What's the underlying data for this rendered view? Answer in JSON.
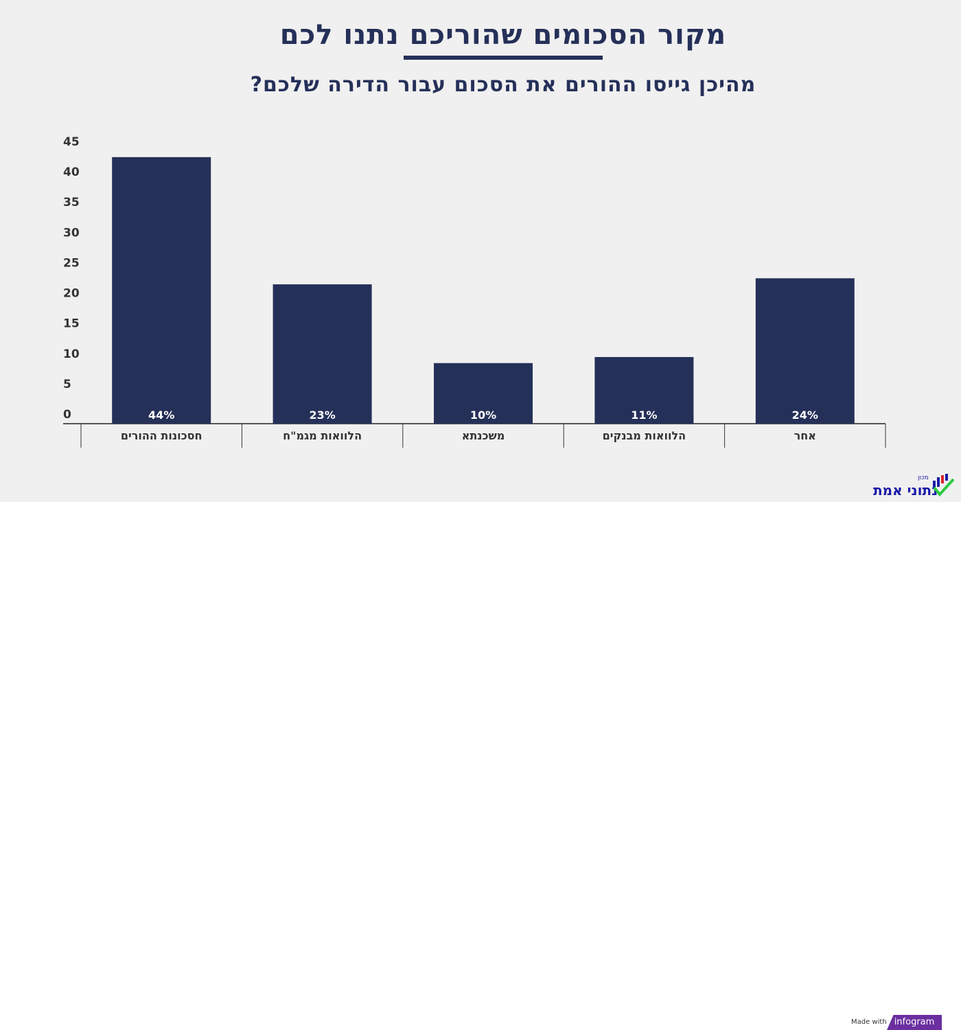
{
  "header": {
    "title": "מקור הסכומים שהוריכם נתנו לכם",
    "subtitle": "מהיכן גייסו ההורים את הסכום עבור הדירה שלכם?"
  },
  "chart_data": {
    "type": "bar",
    "categories": [
      "חסכונות ההורים",
      "הלוואות מגמ\"ח",
      "משכנתא",
      "הלוואות מבנקים",
      "אחר"
    ],
    "values": [
      44,
      23,
      10,
      11,
      24
    ],
    "data_labels": [
      "44%",
      "23%",
      "10%",
      "11%",
      "24%"
    ],
    "ylim": [
      0,
      45
    ],
    "yticks": [
      0,
      5,
      10,
      15,
      20,
      25,
      30,
      35,
      40,
      45
    ],
    "grid": false,
    "bar_color": "#253059",
    "title": "מקור הסכומים שהוריכם נתנו לכם",
    "subtitle": "מהיכן גייסו ההורים את הסכום עבור הדירה שלכם?"
  },
  "logo": {
    "small": "מכון",
    "main": "נתוני אמת"
  },
  "footer": {
    "made_with": "Made with",
    "brand": "infogram"
  }
}
